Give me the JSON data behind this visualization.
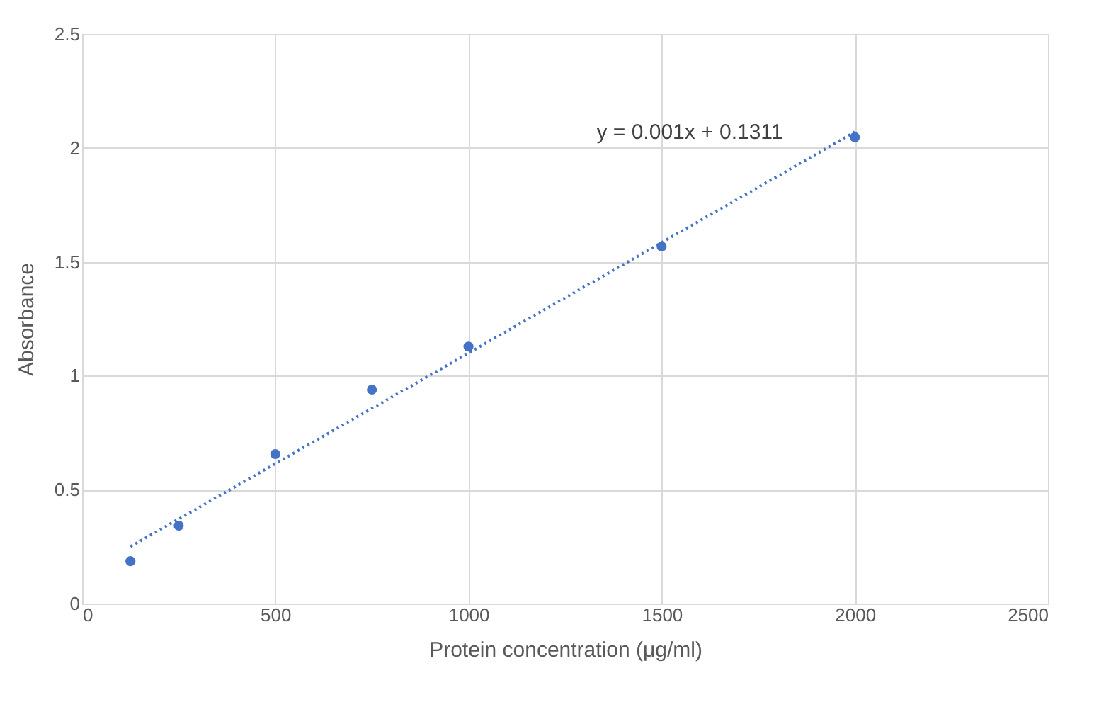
{
  "chart_data": {
    "type": "scatter",
    "xlabel": "Protein concentration (μg/ml)",
    "ylabel": "Absorbance",
    "x": [
      125,
      250,
      500,
      750,
      1000,
      1500,
      2000
    ],
    "series": [
      {
        "color": "#4472c4",
        "marker": "circle",
        "values": [
          0.186,
          0.342,
          0.656,
          0.939,
          1.128,
          1.567,
          2.047
        ]
      },
      {
        "type": "line",
        "color": "#4472c4",
        "line_style": "dotted",
        "x": [
          125,
          2000
        ],
        "values": [
          0.25,
          2.07
        ]
      }
    ],
    "annotations": [
      "y = 0.001x + 0.1311"
    ],
    "xlim": [
      0,
      2500
    ],
    "xticks": [
      0,
      500,
      1000,
      1500,
      2000,
      2500
    ],
    "ylim": [
      0,
      2.5
    ],
    "yticks": [
      0,
      0.5,
      1,
      1.5,
      2,
      2.5
    ],
    "grid": true
  }
}
